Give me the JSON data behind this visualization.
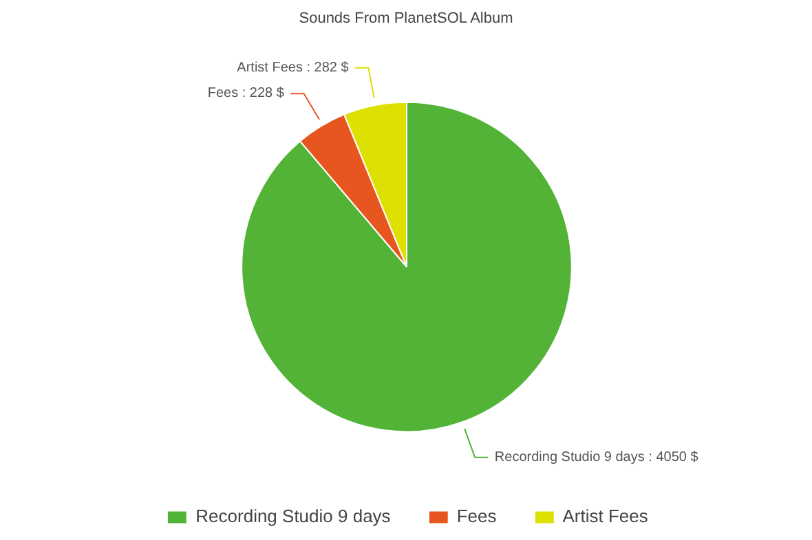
{
  "chart_data": {
    "type": "pie",
    "title": "Sounds From PlanetSOL Album",
    "categories": [
      "Recording Studio 9 days",
      "Fees",
      "Artist Fees"
    ],
    "values": [
      4050,
      228,
      282
    ],
    "colors": [
      "#52b337",
      "#e8561f",
      "#dde000"
    ],
    "value_labels": [
      ": 4050 $",
      ": 228 $",
      ": 282 $"
    ],
    "legend": "bottom"
  }
}
